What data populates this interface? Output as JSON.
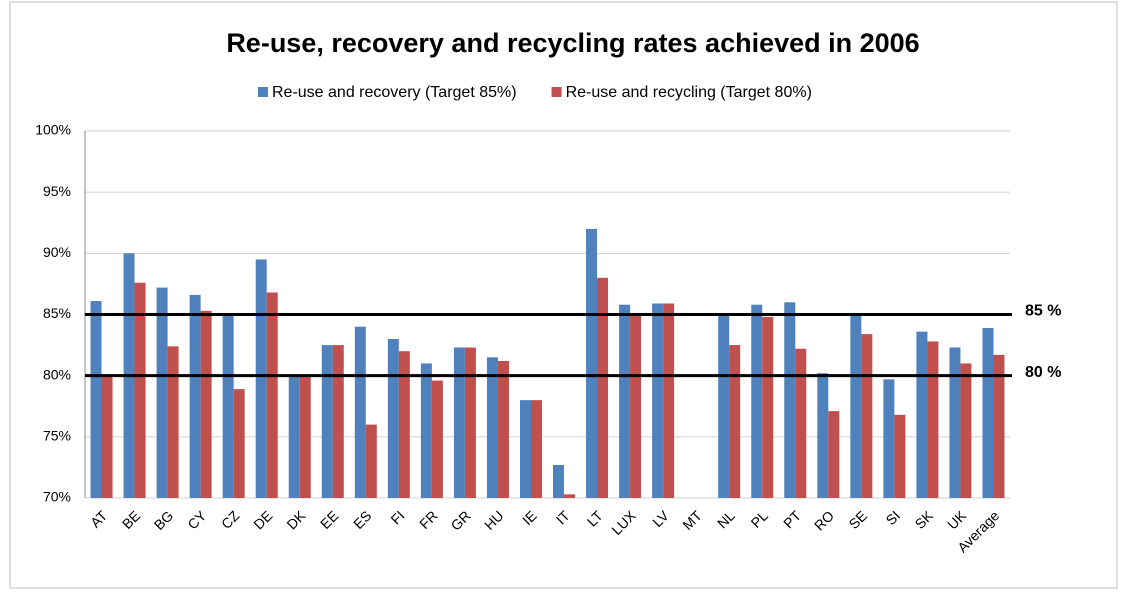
{
  "chart_data": {
    "type": "bar",
    "title": "Re-use, recovery and recycling rates achieved in 2006",
    "categories": [
      "AT",
      "BE",
      "BG",
      "CY",
      "CZ",
      "DE",
      "DK",
      "EE",
      "ES",
      "FI",
      "FR",
      "GR",
      "HU",
      "IE",
      "IT",
      "LT",
      "LUX",
      "LV",
      "MT",
      "NL",
      "PL",
      "PT",
      "RO",
      "SE",
      "SI",
      "SK",
      "UK",
      "Average"
    ],
    "series": [
      {
        "name": "Re-use and recovery (Target 85%)",
        "color": "#4f81bd",
        "values": [
          86.1,
          90,
          87.2,
          86.6,
          85,
          89.5,
          80,
          82.5,
          84,
          83,
          81,
          82.3,
          81.5,
          78,
          72.7,
          92,
          85.8,
          85.9,
          null,
          85,
          85.8,
          86,
          80.2,
          85,
          79.7,
          83.6,
          82.3,
          83.9
        ]
      },
      {
        "name": "Re-use and recycling (Target 80%)",
        "color": "#c0504d",
        "values": [
          80,
          87.6,
          82.4,
          85.3,
          78.9,
          86.8,
          80,
          82.5,
          76,
          82,
          79.6,
          82.3,
          81.2,
          78,
          70.3,
          88,
          85,
          85.9,
          null,
          82.5,
          84.8,
          82.2,
          77.1,
          83.4,
          76.8,
          82.8,
          81,
          81.7
        ]
      }
    ],
    "ylim": [
      70,
      100
    ],
    "yticks": [
      {
        "value": 70,
        "label": "70%"
      },
      {
        "value": 75,
        "label": "75%"
      },
      {
        "value": 80,
        "label": "80%"
      },
      {
        "value": 85,
        "label": "85%"
      },
      {
        "value": 90,
        "label": "90%"
      },
      {
        "value": 95,
        "label": "95%"
      },
      {
        "value": 100,
        "label": "100%"
      }
    ],
    "reference_lines": [
      {
        "value": 85,
        "label": "85 %"
      },
      {
        "value": 80,
        "label": "80 %"
      }
    ],
    "grid": true,
    "legend": "top"
  }
}
